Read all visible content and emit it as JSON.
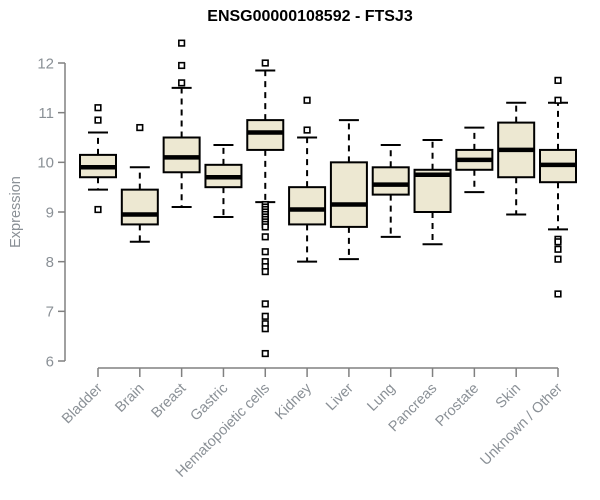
{
  "page": {
    "background": "#ffffff"
  },
  "chart_data": {
    "type": "boxplot",
    "title": "ENSG00000108592 - FTSJ3",
    "ylabel": "Expression",
    "xlabel": "",
    "ylim": [
      6,
      12
    ],
    "yticks": [
      6,
      7,
      8,
      9,
      10,
      11,
      12
    ],
    "grid": false,
    "legend": null,
    "categories": [
      "Bladder",
      "Brain",
      "Breast",
      "Gastric",
      "Hematopoietic cells",
      "Kidney",
      "Liver",
      "Lung",
      "Pancreas",
      "Prostate",
      "Skin",
      "Unknown / Other"
    ],
    "series": [
      {
        "category": "Bladder",
        "whisker_low": 9.45,
        "q1": 9.7,
        "median": 9.9,
        "q3": 10.15,
        "whisker_high": 10.6,
        "outliers": [
          9.05,
          10.85,
          11.1
        ]
      },
      {
        "category": "Brain",
        "whisker_low": 8.4,
        "q1": 8.75,
        "median": 8.95,
        "q3": 9.45,
        "whisker_high": 9.9,
        "outliers": [
          10.7
        ]
      },
      {
        "category": "Breast",
        "whisker_low": 9.1,
        "q1": 9.8,
        "median": 10.1,
        "q3": 10.5,
        "whisker_high": 11.5,
        "outliers": [
          11.6,
          11.95,
          12.4
        ]
      },
      {
        "category": "Gastric",
        "whisker_low": 8.9,
        "q1": 9.5,
        "median": 9.7,
        "q3": 9.95,
        "whisker_high": 10.35,
        "outliers": []
      },
      {
        "category": "Hematopoietic cells",
        "whisker_low": 9.2,
        "q1": 10.25,
        "median": 10.6,
        "q3": 10.85,
        "whisker_high": 11.85,
        "outliers": [
          12.0,
          9.15,
          9.1,
          9.05,
          9.0,
          8.95,
          8.9,
          8.85,
          8.8,
          8.75,
          8.7,
          8.5,
          8.2,
          8.0,
          7.9,
          7.8,
          7.15,
          6.9,
          6.75,
          6.65,
          6.15
        ]
      },
      {
        "category": "Kidney",
        "whisker_low": 8.0,
        "q1": 8.75,
        "median": 9.05,
        "q3": 9.5,
        "whisker_high": 10.5,
        "outliers": [
          10.65,
          11.25
        ]
      },
      {
        "category": "Liver",
        "whisker_low": 8.05,
        "q1": 8.7,
        "median": 9.15,
        "q3": 10.0,
        "whisker_high": 10.85,
        "outliers": []
      },
      {
        "category": "Lung",
        "whisker_low": 8.5,
        "q1": 9.35,
        "median": 9.55,
        "q3": 9.9,
        "whisker_high": 10.35,
        "outliers": []
      },
      {
        "category": "Pancreas",
        "whisker_low": 8.35,
        "q1": 9.0,
        "median": 9.75,
        "q3": 9.85,
        "whisker_high": 10.45,
        "outliers": []
      },
      {
        "category": "Prostate",
        "whisker_low": 9.4,
        "q1": 9.85,
        "median": 10.05,
        "q3": 10.25,
        "whisker_high": 10.7,
        "outliers": []
      },
      {
        "category": "Skin",
        "whisker_low": 8.95,
        "q1": 9.7,
        "median": 10.25,
        "q3": 10.8,
        "whisker_high": 11.2,
        "outliers": []
      },
      {
        "category": "Unknown / Other",
        "whisker_low": 8.65,
        "q1": 9.6,
        "median": 9.95,
        "q3": 10.25,
        "whisker_high": 11.2,
        "outliers": [
          11.65,
          11.25,
          8.45,
          8.4,
          8.25,
          8.05,
          7.35
        ]
      }
    ],
    "style": {
      "box_fill": "#EDE8D2",
      "box_stroke": "#000000",
      "median_color": "#000000",
      "outlier_color": "#000000",
      "axis_color": "#808080",
      "label_color": "#8A9096",
      "title_color": "#000000",
      "background": "#FFFFFF"
    }
  }
}
